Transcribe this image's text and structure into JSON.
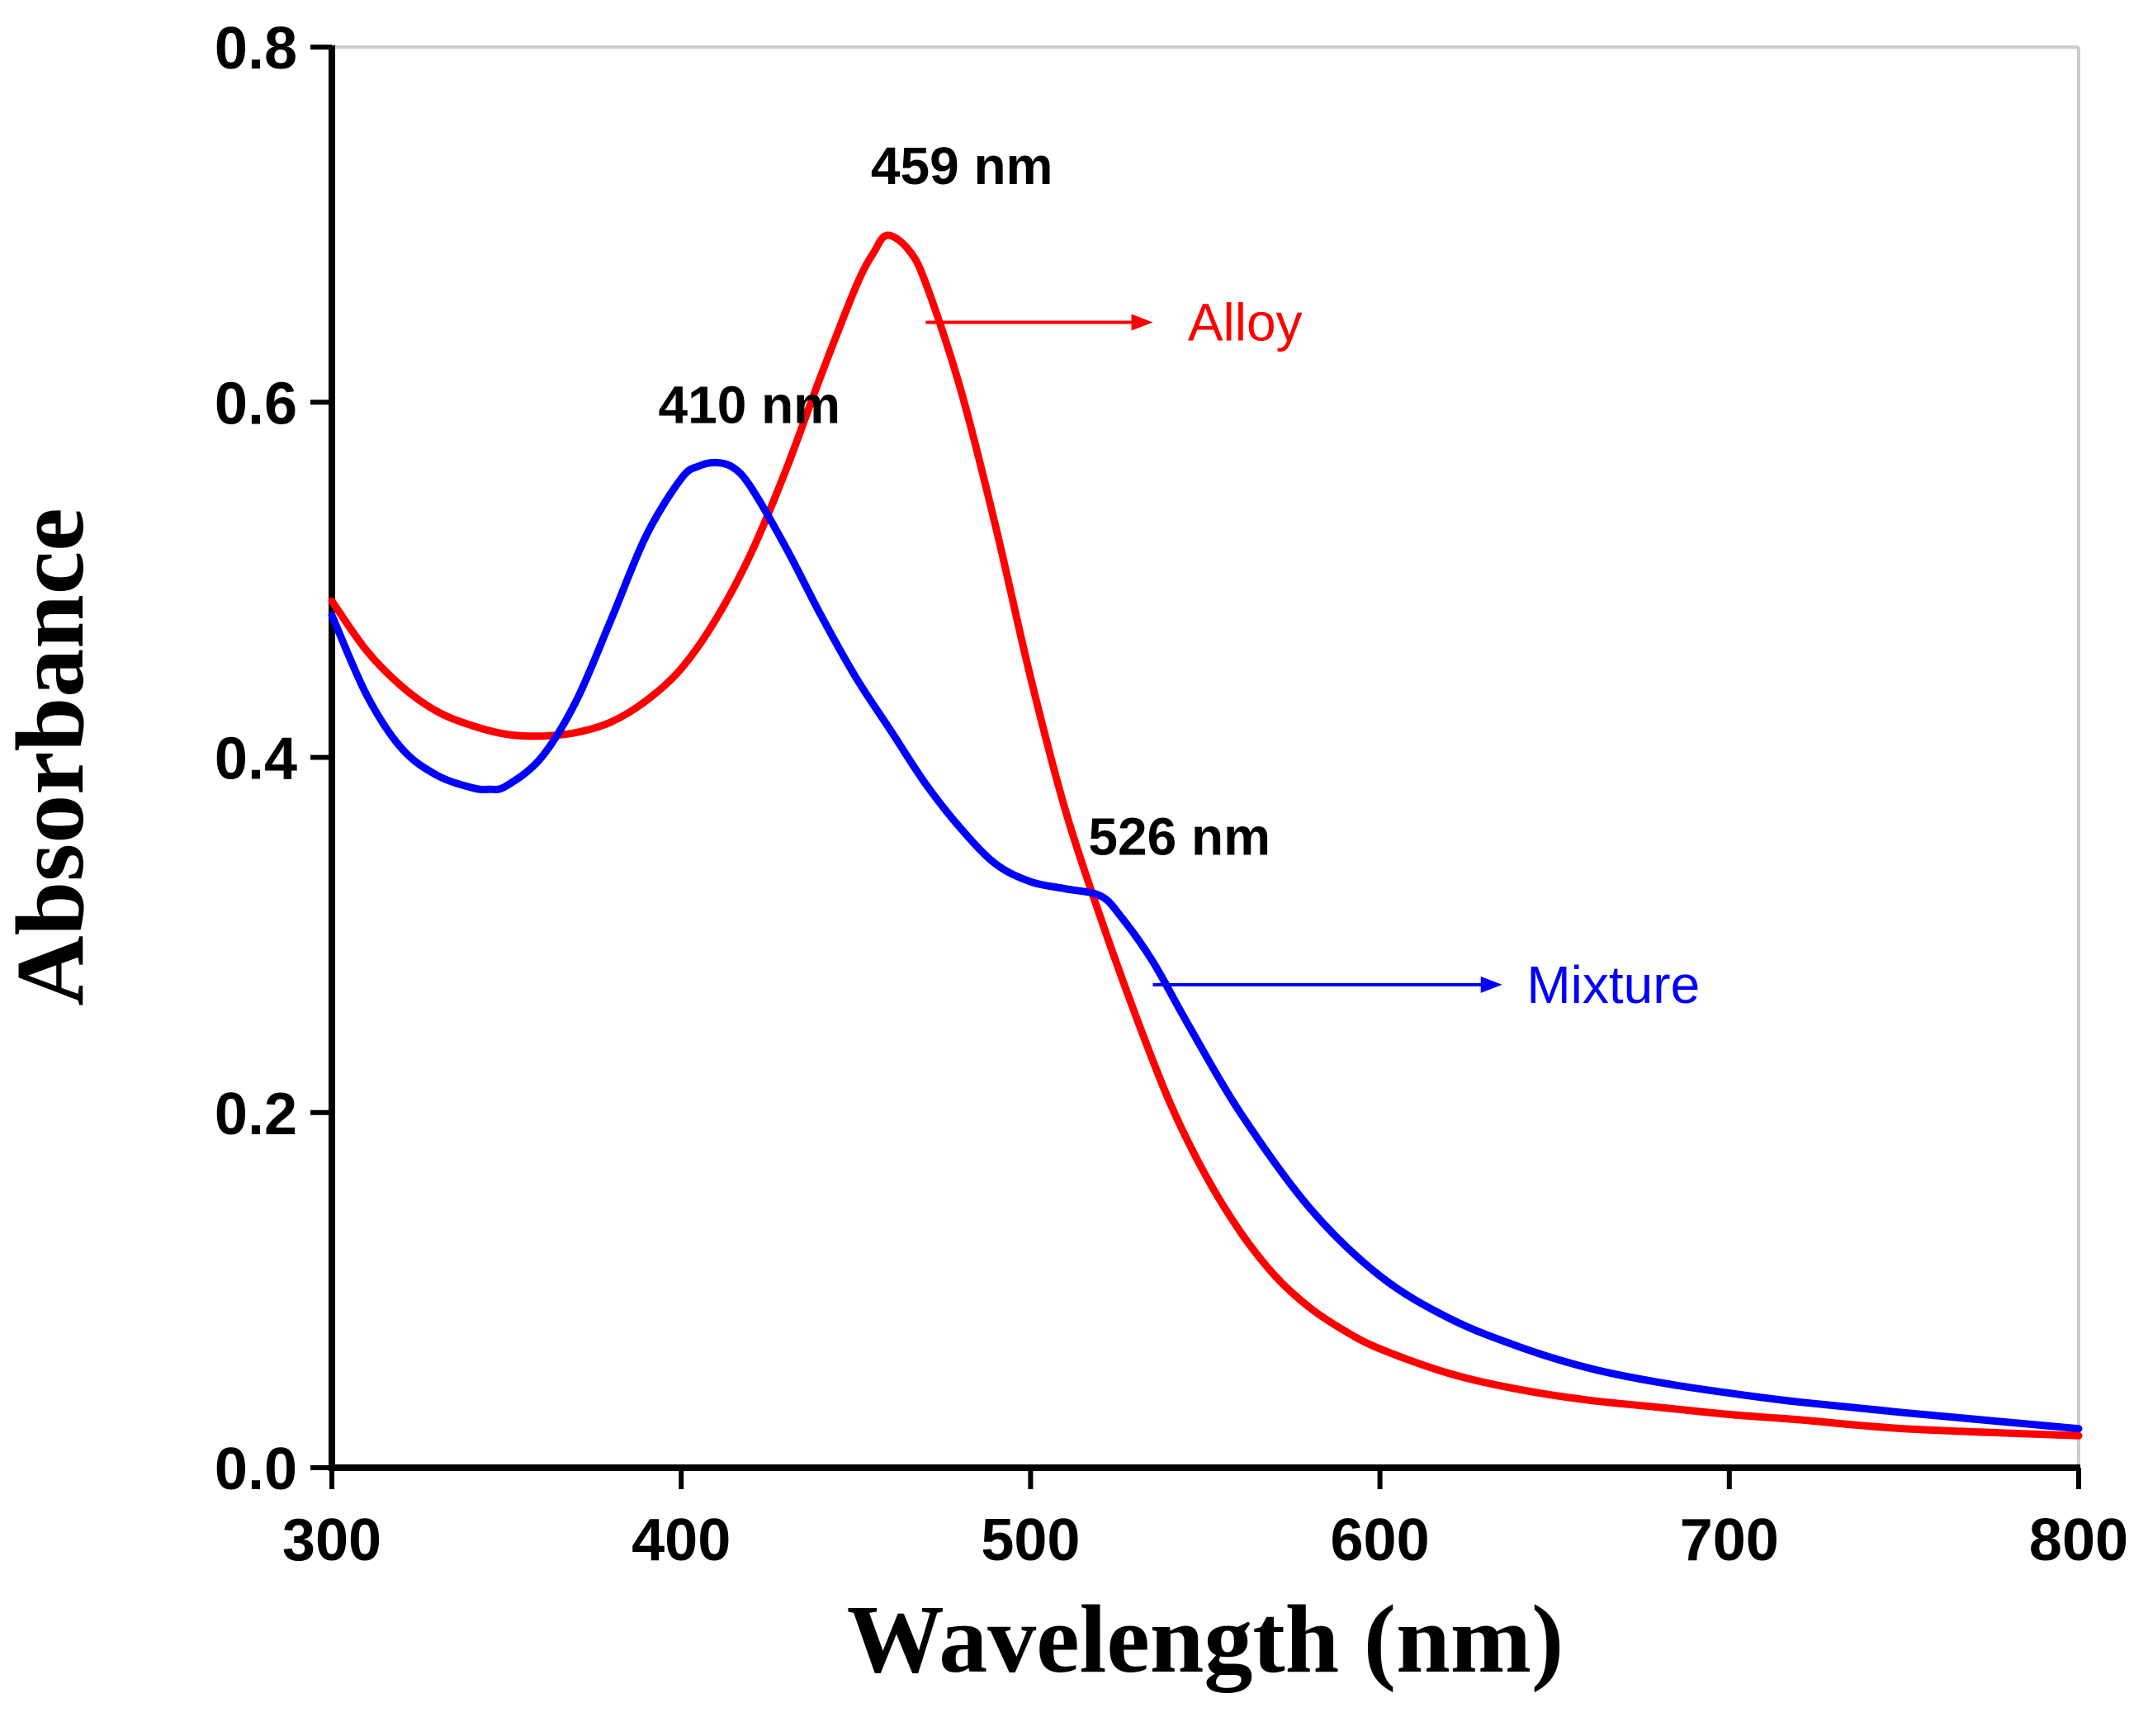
{
  "chart_data": {
    "type": "line",
    "xlabel": "Wavelength (nm)",
    "ylabel": "Absorbance",
    "xlim": [
      300,
      800
    ],
    "ylim": [
      0.0,
      0.8
    ],
    "x_ticks": [
      "300",
      "400",
      "500",
      "600",
      "700",
      "800"
    ],
    "y_ticks": [
      "0.0",
      "0.2",
      "0.4",
      "0.6",
      "0.8"
    ],
    "grid": false,
    "series": [
      {
        "name": "Alloy",
        "color": "#ff0000",
        "x": [
          300,
          310,
          320,
          330,
          340,
          350,
          360,
          370,
          380,
          390,
          400,
          410,
          420,
          430,
          440,
          450,
          455,
          459,
          465,
          470,
          480,
          490,
          500,
          510,
          520,
          530,
          540,
          550,
          560,
          570,
          580,
          590,
          600,
          620,
          640,
          660,
          680,
          700,
          720,
          750,
          800
        ],
        "y": [
          0.488,
          0.46,
          0.44,
          0.426,
          0.418,
          0.413,
          0.412,
          0.414,
          0.42,
          0.432,
          0.45,
          0.478,
          0.515,
          0.562,
          0.615,
          0.665,
          0.684,
          0.694,
          0.686,
          0.667,
          0.607,
          0.53,
          0.445,
          0.37,
          0.31,
          0.255,
          0.205,
          0.165,
          0.133,
          0.108,
          0.09,
          0.077,
          0.067,
          0.053,
          0.044,
          0.038,
          0.034,
          0.03,
          0.027,
          0.022,
          0.018
        ]
      },
      {
        "name": "Mixture",
        "color": "#0000ff",
        "x": [
          300,
          310,
          320,
          330,
          340,
          345,
          350,
          360,
          370,
          380,
          390,
          400,
          405,
          410,
          415,
          420,
          430,
          440,
          450,
          460,
          470,
          480,
          490,
          500,
          510,
          520,
          526,
          535,
          545,
          560,
          580,
          600,
          620,
          640,
          660,
          680,
          700,
          720,
          750,
          800
        ],
        "y": [
          0.48,
          0.435,
          0.405,
          0.39,
          0.383,
          0.382,
          0.384,
          0.4,
          0.432,
          0.478,
          0.525,
          0.557,
          0.564,
          0.566,
          0.563,
          0.552,
          0.518,
          0.48,
          0.445,
          0.415,
          0.385,
          0.36,
          0.34,
          0.33,
          0.326,
          0.322,
          0.31,
          0.285,
          0.25,
          0.2,
          0.146,
          0.108,
          0.084,
          0.068,
          0.056,
          0.048,
          0.042,
          0.037,
          0.031,
          0.022
        ]
      }
    ],
    "annotations": [
      {
        "text": "459 nm",
        "x": 459,
        "y": 0.694
      },
      {
        "text": "410 nm",
        "x": 410,
        "y": 0.566
      },
      {
        "text": "526 nm",
        "x": 526,
        "y": 0.322
      }
    ],
    "legend_labels": [
      {
        "text": "Alloy",
        "color": "#ff0000",
        "series_index": 0
      },
      {
        "text": "Mixture",
        "color": "#0000ff",
        "series_index": 1
      }
    ]
  }
}
